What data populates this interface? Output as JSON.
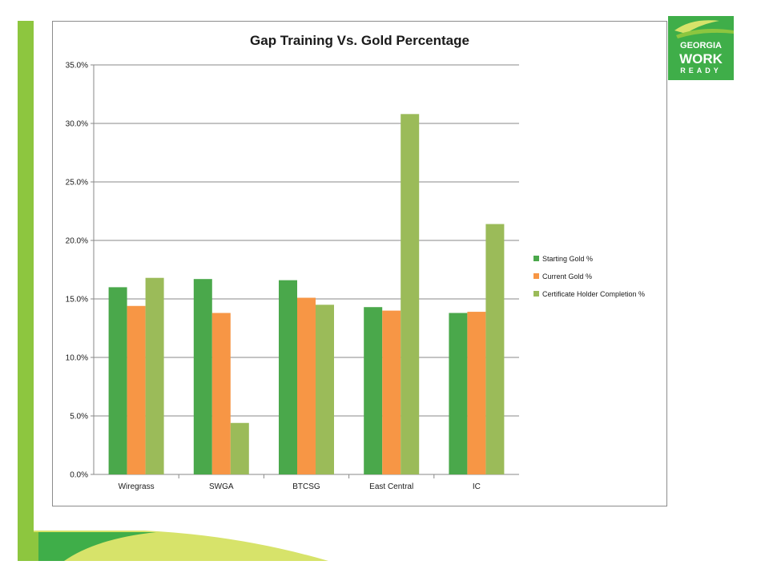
{
  "colors": {
    "starting": "#4aa84b",
    "current": "#f79645",
    "certificate": "#9bbb59",
    "frame_green": "#8dc63f",
    "light_green": "#d7e36a",
    "dark_green": "#3fae49"
  },
  "logo": {
    "line1": "GEORGIA",
    "line2": "WORK",
    "line3": "READY"
  },
  "chart_data": {
    "type": "bar",
    "title": "Gap Training Vs. Gold Percentage",
    "categories": [
      "Wiregrass",
      "SWGA",
      "BTCSG",
      "East Central",
      "IC"
    ],
    "series": [
      {
        "name": "Starting Gold %",
        "values": [
          16.0,
          16.7,
          16.6,
          14.3,
          13.8
        ]
      },
      {
        "name": "Current Gold %",
        "values": [
          14.4,
          13.8,
          15.1,
          14.0,
          13.9
        ]
      },
      {
        "name": "Certificate Holder Completion %",
        "values": [
          16.8,
          4.4,
          14.5,
          30.8,
          21.4
        ]
      }
    ],
    "ylim": [
      0,
      35
    ],
    "yticks": [
      "0.0%",
      "5.0%",
      "10.0%",
      "15.0%",
      "20.0%",
      "25.0%",
      "30.0%",
      "35.0%"
    ],
    "grid": true,
    "legend": "right"
  }
}
